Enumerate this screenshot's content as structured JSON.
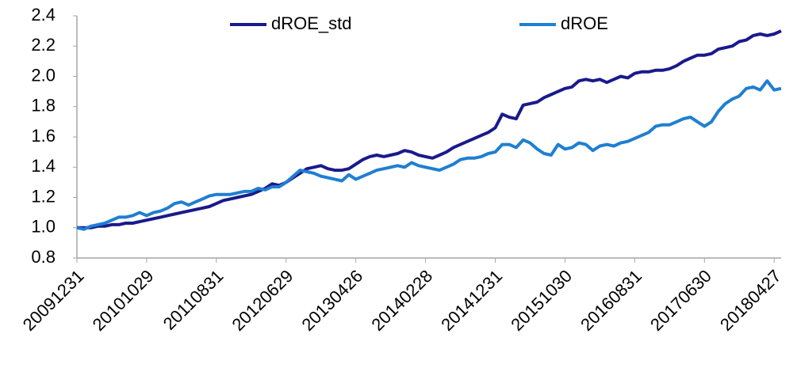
{
  "chart_data": {
    "type": "line",
    "categories": [
      "20091231",
      null,
      null,
      null,
      null,
      null,
      null,
      null,
      null,
      null,
      "20101029",
      null,
      null,
      null,
      null,
      null,
      null,
      null,
      null,
      null,
      "20110831",
      null,
      null,
      null,
      null,
      null,
      null,
      null,
      null,
      null,
      "20120629",
      null,
      null,
      null,
      null,
      null,
      null,
      null,
      null,
      null,
      "20130426",
      null,
      null,
      null,
      null,
      null,
      null,
      null,
      null,
      null,
      "20140228",
      null,
      null,
      null,
      null,
      null,
      null,
      null,
      null,
      null,
      "20141231",
      null,
      null,
      null,
      null,
      null,
      null,
      null,
      null,
      null,
      "20151030",
      null,
      null,
      null,
      null,
      null,
      null,
      null,
      null,
      null,
      "20160831",
      null,
      null,
      null,
      null,
      null,
      null,
      null,
      null,
      null,
      "20170630",
      null,
      null,
      null,
      null,
      null,
      null,
      null,
      null,
      null,
      "20180427",
      null
    ],
    "series": [
      {
        "name": "dROE_std",
        "color": "#1a1a8c",
        "values": [
          1.0,
          1.0,
          1.0,
          1.01,
          1.01,
          1.02,
          1.02,
          1.03,
          1.03,
          1.04,
          1.05,
          1.06,
          1.07,
          1.08,
          1.09,
          1.1,
          1.11,
          1.12,
          1.13,
          1.14,
          1.16,
          1.18,
          1.19,
          1.2,
          1.21,
          1.22,
          1.24,
          1.26,
          1.29,
          1.28,
          1.3,
          1.33,
          1.36,
          1.39,
          1.4,
          1.41,
          1.39,
          1.38,
          1.38,
          1.39,
          1.42,
          1.45,
          1.47,
          1.48,
          1.47,
          1.48,
          1.49,
          1.51,
          1.5,
          1.48,
          1.47,
          1.46,
          1.48,
          1.5,
          1.53,
          1.55,
          1.57,
          1.59,
          1.61,
          1.63,
          1.66,
          1.75,
          1.73,
          1.72,
          1.81,
          1.82,
          1.83,
          1.86,
          1.88,
          1.9,
          1.92,
          1.93,
          1.97,
          1.98,
          1.97,
          1.98,
          1.96,
          1.98,
          2.0,
          1.99,
          2.02,
          2.03,
          2.03,
          2.04,
          2.04,
          2.05,
          2.07,
          2.1,
          2.12,
          2.14,
          2.14,
          2.15,
          2.18,
          2.19,
          2.2,
          2.23,
          2.24,
          2.27,
          2.28,
          2.27,
          2.28,
          2.3
        ]
      },
      {
        "name": "dROE",
        "color": "#1f7fd1",
        "values": [
          1.0,
          0.99,
          1.01,
          1.02,
          1.03,
          1.05,
          1.07,
          1.07,
          1.08,
          1.1,
          1.08,
          1.1,
          1.11,
          1.13,
          1.16,
          1.17,
          1.15,
          1.17,
          1.19,
          1.21,
          1.22,
          1.22,
          1.22,
          1.23,
          1.24,
          1.24,
          1.26,
          1.25,
          1.27,
          1.27,
          1.3,
          1.34,
          1.38,
          1.37,
          1.36,
          1.34,
          1.33,
          1.32,
          1.31,
          1.35,
          1.32,
          1.34,
          1.36,
          1.38,
          1.39,
          1.4,
          1.41,
          1.4,
          1.43,
          1.41,
          1.4,
          1.39,
          1.38,
          1.4,
          1.42,
          1.45,
          1.46,
          1.46,
          1.47,
          1.49,
          1.5,
          1.55,
          1.55,
          1.53,
          1.58,
          1.56,
          1.52,
          1.49,
          1.48,
          1.55,
          1.52,
          1.53,
          1.56,
          1.55,
          1.51,
          1.54,
          1.55,
          1.54,
          1.56,
          1.57,
          1.59,
          1.61,
          1.63,
          1.67,
          1.68,
          1.68,
          1.7,
          1.72,
          1.73,
          1.7,
          1.67,
          1.7,
          1.77,
          1.82,
          1.85,
          1.87,
          1.92,
          1.93,
          1.91,
          1.97,
          1.91,
          1.92
        ]
      }
    ],
    "ylim": [
      0.8,
      2.4
    ],
    "yticks": [
      0.8,
      {
        "value": 1,
        "label": "1.0"
      },
      1.2,
      1.4,
      1.6,
      1.8,
      {
        "value": 2,
        "label": "2.0"
      },
      2.2,
      2.4
    ],
    "grid": false,
    "legend": "top"
  }
}
